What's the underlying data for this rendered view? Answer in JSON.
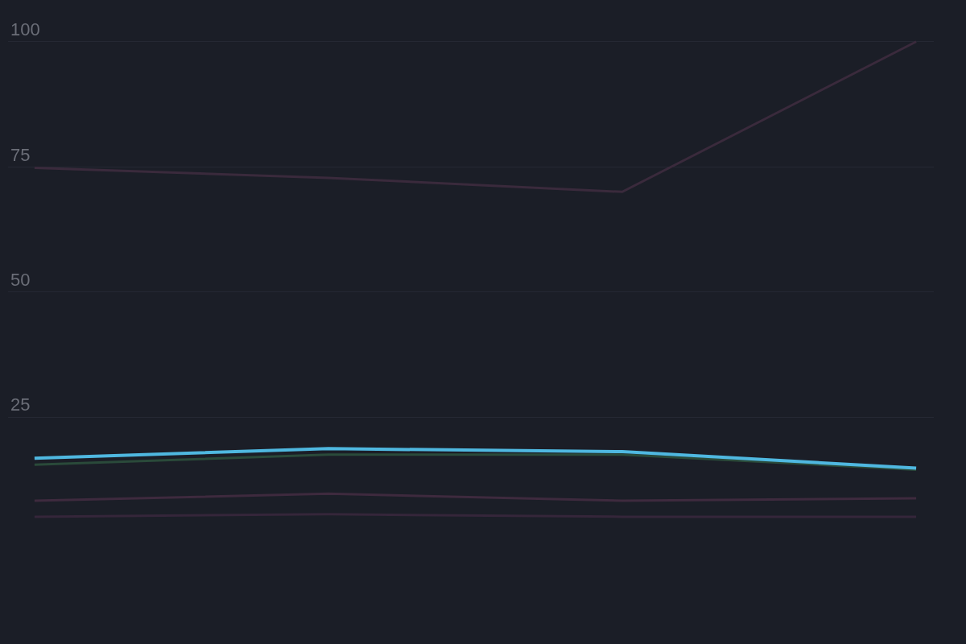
{
  "chart_data": {
    "type": "line",
    "categories": [
      null,
      null,
      null,
      null
    ],
    "series": [
      {
        "color": "#3a2a3c",
        "values": [
          74.8,
          72.8,
          70,
          100
        ]
      },
      {
        "color": "#2a4a3a",
        "values": [
          15.5,
          17.5,
          17.5,
          14.5
        ]
      },
      {
        "color": "#4fb8e0",
        "values": [
          16.8,
          18.7,
          18.1,
          14.8
        ]
      },
      {
        "color": "#3e2a3e",
        "values": [
          8.3,
          9.7,
          8.3,
          8.8
        ]
      },
      {
        "color": "#35263a",
        "values": [
          5.1,
          5.6,
          5.1,
          5.1
        ]
      }
    ],
    "ylim": [
      -20,
      108
    ],
    "yticks": [
      25,
      50,
      75,
      100
    ],
    "grid": "y",
    "tick_labels": "y"
  }
}
